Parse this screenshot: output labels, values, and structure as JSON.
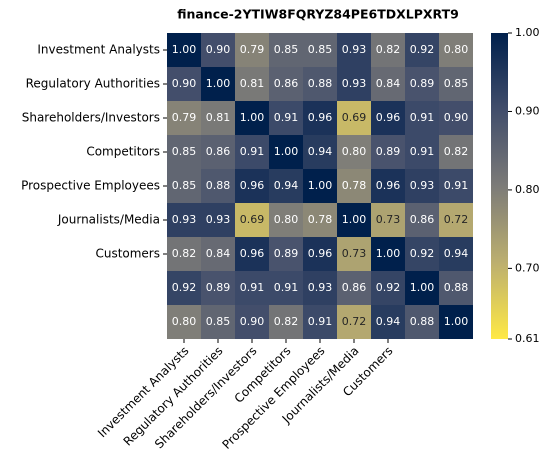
{
  "chart_data": {
    "type": "heatmap",
    "title": "finance-2YTIW8FQRYZ84PE6TDXLPXRT9",
    "categories": [
      "Investment Analysts",
      "Regulatory Authorities",
      "Shareholders/Investors",
      "Competitors",
      "Prospective Employees",
      "Journalists/Media",
      "Customers",
      null,
      null
    ],
    "z": [
      [
        1.0,
        0.9,
        0.79,
        0.85,
        0.85,
        0.93,
        0.82,
        0.92,
        0.8
      ],
      [
        0.9,
        1.0,
        0.81,
        0.86,
        0.88,
        0.93,
        0.84,
        0.89,
        0.85
      ],
      [
        0.79,
        0.81,
        1.0,
        0.91,
        0.96,
        0.69,
        0.96,
        0.91,
        0.9
      ],
      [
        0.85,
        0.86,
        0.91,
        1.0,
        0.94,
        0.8,
        0.89,
        0.91,
        0.82
      ],
      [
        0.85,
        0.88,
        0.96,
        0.94,
        1.0,
        0.78,
        0.96,
        0.93,
        0.91
      ],
      [
        0.93,
        0.93,
        0.69,
        0.8,
        0.78,
        1.0,
        0.73,
        0.86,
        0.72
      ],
      [
        0.82,
        0.84,
        0.96,
        0.89,
        0.96,
        0.73,
        1.0,
        0.92,
        0.94
      ],
      [
        0.92,
        0.89,
        0.91,
        0.91,
        0.93,
        0.86,
        0.92,
        1.0,
        0.88
      ],
      [
        0.8,
        0.85,
        0.9,
        0.82,
        0.91,
        0.72,
        0.94,
        0.88,
        1.0
      ]
    ],
    "value_labels": [
      [
        "1.00",
        "0.90",
        "0.79",
        "0.85",
        "0.85",
        "0.93",
        "0.82",
        "0.92",
        "0.80"
      ],
      [
        "0.90",
        "1.00",
        "0.81",
        "0.86",
        "0.88",
        "0.93",
        "0.84",
        "0.89",
        "0.85"
      ],
      [
        "0.79",
        "0.81",
        "1.00",
        "0.91",
        "0.96",
        "0.69",
        "0.96",
        "0.91",
        "0.90"
      ],
      [
        "0.85",
        "0.86",
        "0.91",
        "1.00",
        "0.94",
        "0.80",
        "0.89",
        "0.91",
        "0.82"
      ],
      [
        "0.85",
        "0.88",
        "0.96",
        "0.94",
        "1.00",
        "0.78",
        "0.96",
        "0.93",
        "0.91"
      ],
      [
        "0.93",
        "0.93",
        "0.69",
        "0.80",
        "0.78",
        "1.00",
        "0.73",
        "0.86",
        "0.72"
      ],
      [
        "0.82",
        "0.84",
        "0.96",
        "0.89",
        "0.96",
        "0.73",
        "1.00",
        "0.92",
        "0.94"
      ],
      [
        "0.92",
        "0.89",
        "0.91",
        "0.91",
        "0.93",
        "0.86",
        "0.92",
        "1.00",
        "0.88"
      ],
      [
        "0.80",
        "0.85",
        "0.90",
        "0.82",
        "0.91",
        "0.72",
        "0.94",
        "0.88",
        "1.00"
      ]
    ],
    "clim": [
      0.61,
      1.0
    ],
    "cticks": [
      {
        "value": 0.61,
        "label": "0.61"
      },
      {
        "value": 0.7,
        "label": "0.70"
      },
      {
        "value": 0.8,
        "label": "0.80"
      },
      {
        "value": 0.9,
        "label": "0.90"
      },
      {
        "value": 1.0,
        "label": "1.00"
      }
    ],
    "colorscale": [
      "#ffe945",
      "#bcaf6f",
      "#7c7b78",
      "#414d6b",
      "#00204c"
    ]
  }
}
